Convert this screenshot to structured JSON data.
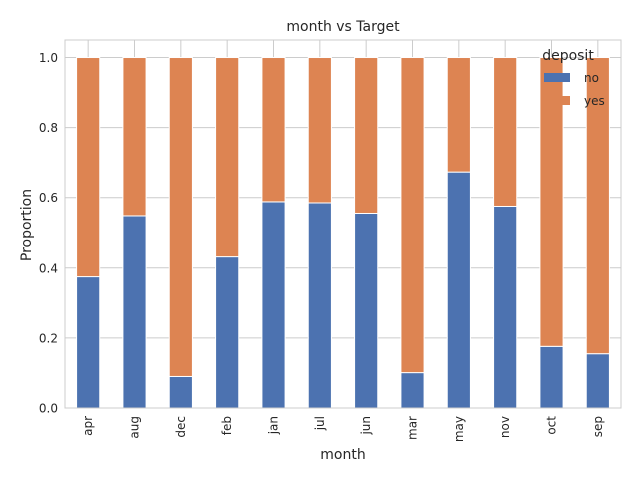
{
  "chart_data": {
    "type": "bar",
    "stacked": true,
    "title": "month vs Target",
    "xlabel": "month",
    "ylabel": "Proportion",
    "ylim": [
      0,
      1.05
    ],
    "yticks": [
      "0.0",
      "0.2",
      "0.4",
      "0.6",
      "0.8",
      "1.0"
    ],
    "grid": true,
    "legend": {
      "title": "deposit",
      "placement": "top-right"
    },
    "categories": [
      "apr",
      "aug",
      "dec",
      "feb",
      "jan",
      "jul",
      "jun",
      "mar",
      "may",
      "nov",
      "oct",
      "sep"
    ],
    "series": [
      {
        "name": "no",
        "color": "#4c72b0",
        "values": [
          0.375,
          0.548,
          0.09,
          0.432,
          0.588,
          0.585,
          0.555,
          0.101,
          0.673,
          0.575,
          0.176,
          0.155
        ]
      },
      {
        "name": "yes",
        "color": "#dd8452",
        "values": [
          0.625,
          0.452,
          0.91,
          0.568,
          0.412,
          0.415,
          0.445,
          0.899,
          0.327,
          0.425,
          0.824,
          0.845
        ]
      }
    ]
  }
}
